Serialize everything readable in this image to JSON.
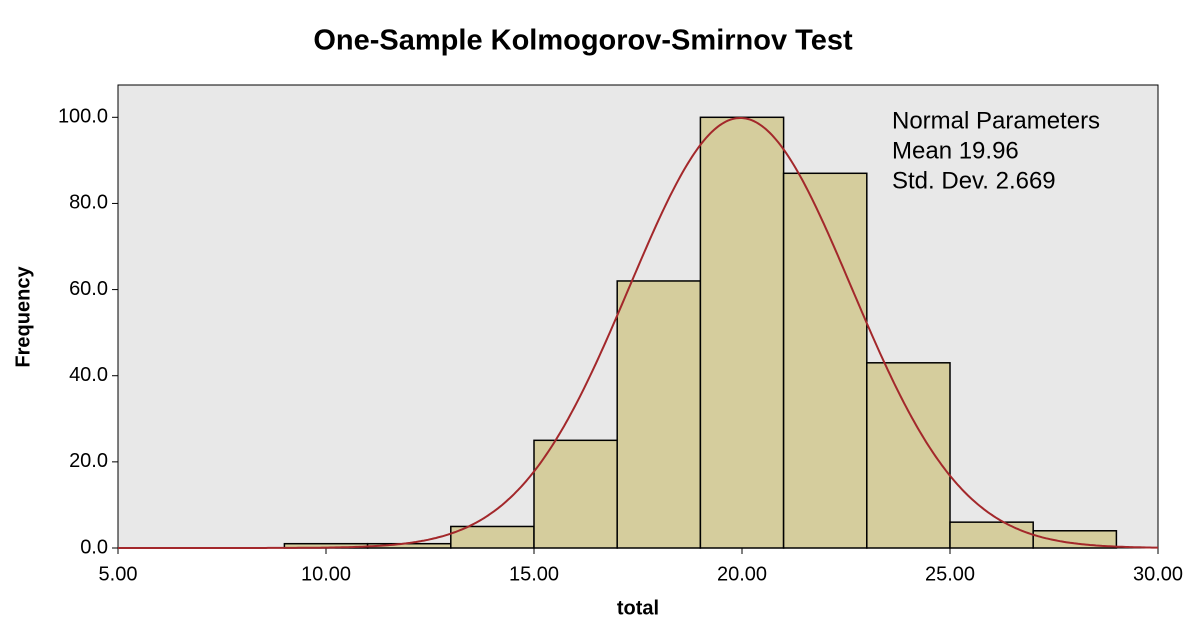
{
  "chart_data": {
    "type": "histogram",
    "title": "One-Sample Kolmogorov-Smirnov Test",
    "x_label": "total",
    "y_label": "Frequency",
    "bins": [
      9,
      11,
      13,
      15,
      17,
      19,
      21,
      23,
      25,
      27,
      29
    ],
    "values": [
      1,
      1,
      5,
      25,
      62,
      100,
      87,
      43,
      6,
      4
    ],
    "color": "#d5cd9d",
    "xlim": [
      5,
      30
    ],
    "xticks": [
      {
        "value": 5,
        "label": "5.00"
      },
      {
        "value": 10,
        "label": "10.00"
      },
      {
        "value": 15,
        "label": "15.00"
      },
      {
        "value": 20,
        "label": "20.00"
      },
      {
        "value": 25,
        "label": "25.00"
      },
      {
        "value": 30,
        "label": "30.00"
      }
    ],
    "ylim": [
      0,
      107.5
    ],
    "yticks": [
      {
        "value": 0,
        "label": "0.0"
      },
      {
        "value": 20,
        "label": "20.0"
      },
      {
        "value": 40,
        "label": "40.0"
      },
      {
        "value": 60,
        "label": "60.0"
      },
      {
        "value": 80,
        "label": "80.0"
      },
      {
        "value": 100,
        "label": "100.0"
      }
    ],
    "annotations": [
      "Normal Parameters",
      "Mean 19.96",
      "Std. Dev. 2.669"
    ],
    "normal_curve": {
      "mean": 19.96,
      "sd": 2.669,
      "color": "#a3282b"
    }
  }
}
